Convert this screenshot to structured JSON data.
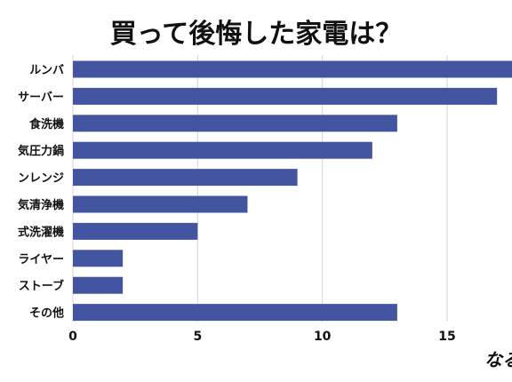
{
  "chart_data": {
    "type": "bar",
    "orientation": "horizontal",
    "title": "買って後悔した家電は？",
    "categories": [
      "ルンバ",
      "サーバー",
      "食洗機",
      "気圧力鍋",
      "ンレンジ",
      "気清浄機",
      "式洗濯機",
      "ライヤー",
      "ストーブ",
      "その他"
    ],
    "values": [
      18,
      17,
      13,
      12,
      9,
      7,
      5,
      2,
      2,
      13
    ],
    "xlim": [
      0,
      17.6
    ],
    "xticks": [
      0,
      5,
      10,
      15
    ],
    "grid": true,
    "bar_color": "#4355a0"
  }
}
